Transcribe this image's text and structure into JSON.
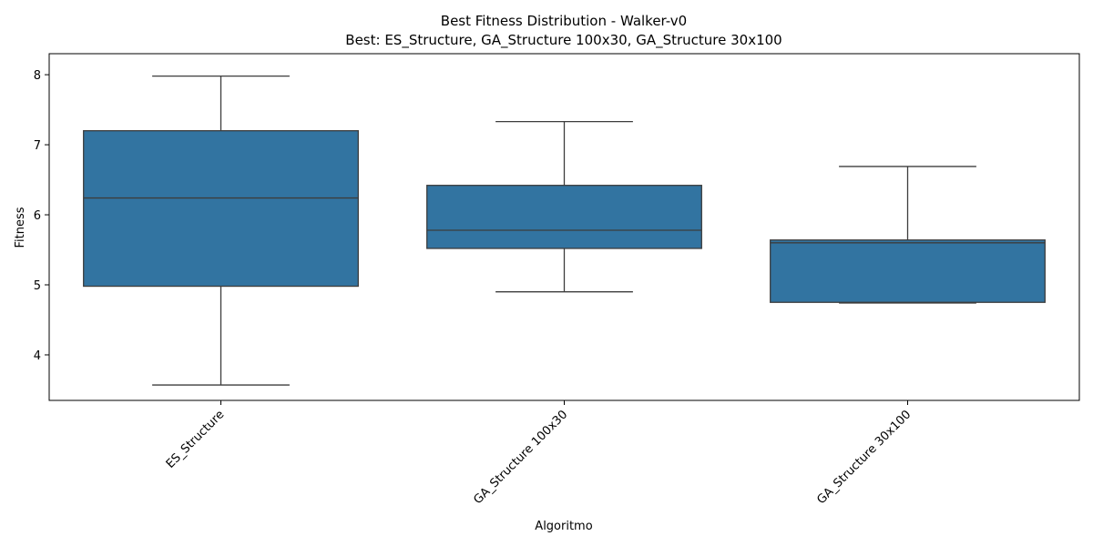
{
  "chart_data": {
    "type": "box",
    "title": "Best Fitness Distribution - Walker-v0",
    "subtitle": "Best: ES_Structure, GA_Structure 100x30, GA_Structure 30x100",
    "xlabel": "Algoritmo",
    "ylabel": "Fitness",
    "ylim": [
      3.35,
      8.3
    ],
    "yticks": [
      4,
      5,
      6,
      7,
      8
    ],
    "ytick_labels": [
      "4",
      "5",
      "6",
      "7",
      "8"
    ],
    "categories": [
      "ES_Structure",
      "GA_Structure 100x30",
      "GA_Structure 30x100"
    ],
    "x_tick_rotation_deg": 45,
    "grid": false,
    "box_color": "#3274a1",
    "line_color": "#3d3d3d",
    "boxes": [
      {
        "category": "ES_Structure",
        "whisker_low": 3.57,
        "q1": 4.98,
        "median": 6.24,
        "q3": 7.2,
        "whisker_high": 7.98
      },
      {
        "category": "GA_Structure 100x30",
        "whisker_low": 4.9,
        "q1": 5.52,
        "median": 5.78,
        "q3": 6.42,
        "whisker_high": 7.33
      },
      {
        "category": "GA_Structure 30x100",
        "whisker_low": 4.74,
        "q1": 4.75,
        "median": 5.6,
        "q3": 5.64,
        "whisker_high": 6.69
      }
    ]
  }
}
